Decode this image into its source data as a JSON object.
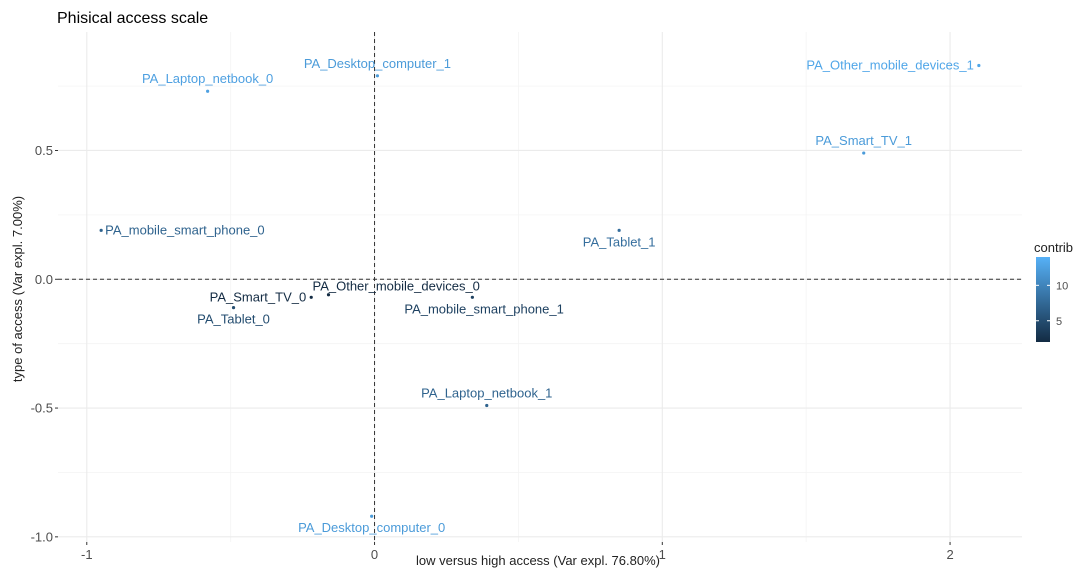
{
  "chart_data": {
    "type": "scatter",
    "title": "Phisical access scale",
    "xlabel": "low versus high access (Var expl. 76.80%)",
    "ylabel": "type of access (Var expl. 7.00%)",
    "xlim": [
      -1.1,
      2.25
    ],
    "ylim": [
      -1.02,
      0.96
    ],
    "x_ticks": [
      -1,
      0,
      1,
      2
    ],
    "x_tick_labels": [
      "-1",
      "0",
      "1",
      "2"
    ],
    "y_ticks": [
      -1.0,
      -0.5,
      0.0,
      0.5
    ],
    "y_tick_labels": [
      "-1.0",
      "-0.5",
      "0.0",
      "0.5"
    ],
    "grid": true,
    "reference_lines": {
      "x": 0,
      "y": 0,
      "style": "dashed"
    },
    "legend": {
      "title": "contrib",
      "position": "right",
      "min": 2,
      "max": 14,
      "ticks": [
        5,
        10
      ],
      "tick_labels": [
        "5",
        "10"
      ],
      "color_low": "#132B43",
      "color_high": "#56B1F7"
    },
    "points": [
      {
        "label": "PA_Desktop_computer_1",
        "x": 0.01,
        "y": 0.79,
        "contrib": 12.0,
        "label_pos": "above"
      },
      {
        "label": "PA_Laptop_netbook_0",
        "x": -0.58,
        "y": 0.73,
        "contrib": 12.5,
        "label_pos": "above"
      },
      {
        "label": "PA_Other_mobile_devices_1",
        "x": 2.1,
        "y": 0.83,
        "contrib": 13.0,
        "label_pos": "left"
      },
      {
        "label": "PA_Smart_TV_1",
        "x": 1.7,
        "y": 0.49,
        "contrib": 12.0,
        "label_pos": "above"
      },
      {
        "label": "PA_mobile_smart_phone_0",
        "x": -0.95,
        "y": 0.19,
        "contrib": 7.0,
        "label_pos": "right"
      },
      {
        "label": "PA_Tablet_1",
        "x": 0.85,
        "y": 0.19,
        "contrib": 8.0,
        "label_pos": "below"
      },
      {
        "label": "PA_Other_mobile_devices_0",
        "x": -0.16,
        "y": -0.06,
        "contrib": 2.0,
        "label_pos": "above-right"
      },
      {
        "label": "PA_Smart_TV_0",
        "x": -0.22,
        "y": -0.07,
        "contrib": 2.0,
        "label_pos": "left"
      },
      {
        "label": "PA_Tablet_0",
        "x": -0.49,
        "y": -0.11,
        "contrib": 5.0,
        "label_pos": "below"
      },
      {
        "label": "PA_mobile_smart_phone_1",
        "x": 0.34,
        "y": -0.07,
        "contrib": 4.0,
        "label_pos": "below-right"
      },
      {
        "label": "PA_Laptop_netbook_1",
        "x": 0.39,
        "y": -0.49,
        "contrib": 7.0,
        "label_pos": "above"
      },
      {
        "label": "PA_Desktop_computer_0",
        "x": -0.01,
        "y": -0.92,
        "contrib": 12.0,
        "label_pos": "below"
      }
    ]
  }
}
